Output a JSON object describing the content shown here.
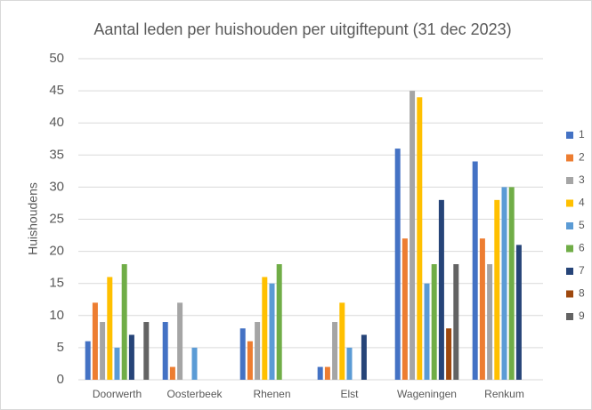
{
  "chart_data": {
    "type": "bar",
    "title": "Aantal leden per huishouden per uitgiftepunt (31 dec 2023)",
    "y_label": "Huishoudens",
    "categories": [
      "Doorwerth",
      "Oosterbeek",
      "Rhenen",
      "Elst",
      "Wageningen",
      "Renkum"
    ],
    "series": [
      {
        "name": "1",
        "color": "#4472c4",
        "values": [
          6,
          9,
          8,
          2,
          36,
          34
        ]
      },
      {
        "name": "2",
        "color": "#ed7d31",
        "values": [
          12,
          2,
          6,
          2,
          22,
          22
        ]
      },
      {
        "name": "3",
        "color": "#a5a5a5",
        "values": [
          9,
          12,
          9,
          9,
          45,
          18
        ]
      },
      {
        "name": "4",
        "color": "#ffc000",
        "values": [
          16,
          0,
          16,
          12,
          44,
          28
        ]
      },
      {
        "name": "5",
        "color": "#5b9bd5",
        "values": [
          5,
          5,
          15,
          5,
          15,
          30
        ]
      },
      {
        "name": "6",
        "color": "#70ad47",
        "values": [
          18,
          0,
          18,
          0,
          18,
          30
        ]
      },
      {
        "name": "7",
        "color": "#264478",
        "values": [
          7,
          0,
          0,
          7,
          28,
          21
        ]
      },
      {
        "name": "8",
        "color": "#9e480e",
        "values": [
          0,
          0,
          0,
          0,
          8,
          0
        ]
      },
      {
        "name": "9",
        "color": "#636363",
        "values": [
          9,
          0,
          0,
          0,
          18,
          0
        ]
      }
    ],
    "ylim": [
      0,
      50
    ],
    "yticks": [
      0,
      5,
      10,
      15,
      20,
      25,
      30,
      35,
      40,
      45,
      50
    ],
    "grid": true,
    "legend": "right"
  }
}
